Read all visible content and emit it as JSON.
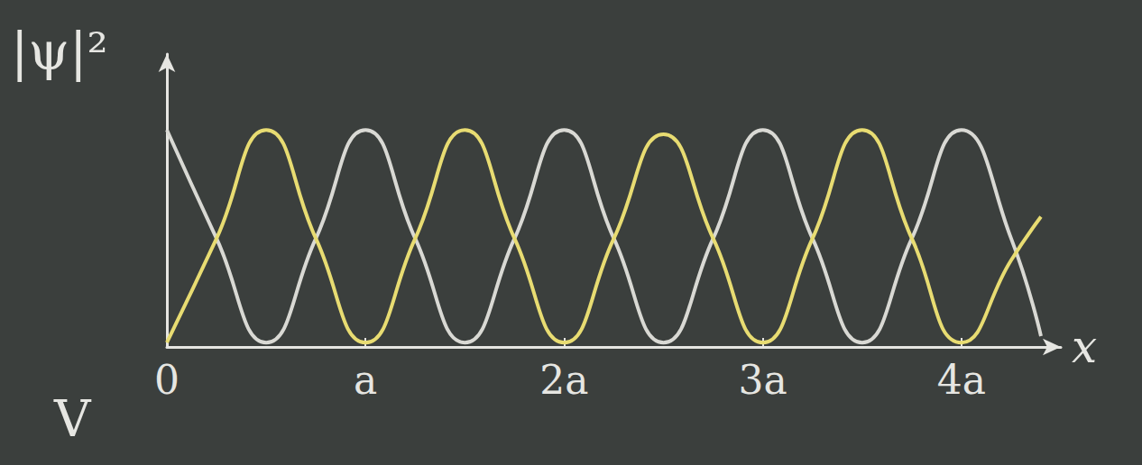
{
  "chart_data": {
    "type": "line",
    "y_label": "|ψ|²",
    "x_label": "x",
    "annotation": "V",
    "xlim": [
      0,
      4.5
    ],
    "ylim": [
      0,
      1.35
    ],
    "xticks": [
      0,
      {
        "value": 1,
        "label": "a"
      },
      {
        "value": 2,
        "label": "2a"
      },
      {
        "value": 3,
        "label": "3a"
      },
      {
        "value": 4,
        "label": "4a"
      }
    ],
    "tick_labels": "x",
    "grid": false,
    "series": [
      {
        "color": "#d9d9d4",
        "x": [
          0,
          0.25,
          0.5,
          0.75,
          1,
          1.25,
          1.5,
          1.75,
          2,
          2.25,
          2.5,
          2.75,
          3,
          3.25,
          3.5,
          3.75,
          4,
          4.25,
          4.4
        ],
        "values": [
          1,
          0.5,
          0.02,
          0.5,
          1,
          0.5,
          0.02,
          0.5,
          1,
          0.5,
          0.02,
          0.5,
          1,
          0.5,
          0.02,
          0.5,
          1,
          0.5,
          0.05
        ]
      },
      {
        "color": "#e8dc72",
        "x": [
          0,
          0.25,
          0.5,
          0.75,
          1,
          1.25,
          1.5,
          1.75,
          2,
          2.25,
          2.5,
          2.75,
          3,
          3.25,
          3.5,
          3.75,
          4,
          4.25,
          4.4
        ],
        "values": [
          0.02,
          0.5,
          1,
          0.5,
          0.02,
          0.5,
          1,
          0.5,
          0.02,
          0.5,
          0.98,
          0.5,
          0.02,
          0.5,
          1,
          0.5,
          0.02,
          0.4,
          0.6
        ]
      }
    ]
  }
}
